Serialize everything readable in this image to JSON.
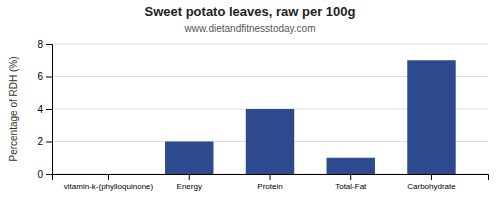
{
  "chart_data": {
    "type": "bar",
    "title": "Sweet potato leaves, raw per 100g",
    "subtitle": "www.dietandfitnesstoday.com",
    "categories": [
      "vitamin-k-(phylloquinone)",
      "Energy",
      "Protein",
      "Total-Fat",
      "Carbohydrate"
    ],
    "values": [
      0,
      2,
      4,
      1,
      7
    ],
    "color": "#2e4a8e",
    "ylabel": "Percentage of RDH (%)",
    "ylim": [
      0,
      8
    ],
    "yticks": [
      0,
      2,
      4,
      6,
      8
    ],
    "grid": true
  }
}
